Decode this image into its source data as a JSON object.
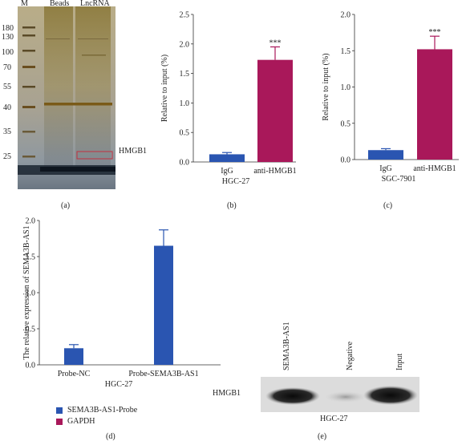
{
  "colors": {
    "blue": "#2a55b1",
    "magenta": "#a9185a",
    "axis": "#333333",
    "gel_dark": "#1a2430",
    "gel_gold": "#8a7436"
  },
  "panel_a": {
    "caption": "(a)",
    "lane_labels": [
      "M",
      "Beads",
      "LncRNA"
    ],
    "marker_labels": [
      "180",
      "130",
      "100",
      "70",
      "55",
      "40",
      "35",
      "25"
    ],
    "band_label": "HMGB1"
  },
  "panel_b": {
    "caption": "(b)",
    "cell_line": "HGC-27",
    "chart_data": {
      "type": "bar",
      "categories": [
        "IgG",
        "anti-HMGB1"
      ],
      "values": [
        0.13,
        1.73
      ],
      "errors": [
        0.03,
        0.22
      ],
      "ylabel": "Relative to input (%)",
      "ylim": [
        0,
        2.5
      ],
      "yticks": [
        "0.0",
        "0.5",
        "1.0",
        "1.5",
        "2.0",
        "2.5"
      ],
      "annotation": "***"
    }
  },
  "panel_c": {
    "caption": "(c)",
    "cell_line": "SGC-7901",
    "chart_data": {
      "type": "bar",
      "categories": [
        "IgG",
        "anti-HMGB1"
      ],
      "values": [
        0.13,
        1.52
      ],
      "errors": [
        0.02,
        0.18
      ],
      "ylabel": "Relative to input (%)",
      "ylim": [
        0,
        2.0
      ],
      "yticks": [
        "0.0",
        "0.5",
        "1.0",
        "1.5",
        "2.0"
      ],
      "annotation": "***"
    }
  },
  "panel_d": {
    "caption": "(d)",
    "cell_line": "HGC-27",
    "legend": [
      "SEMA3B-AS1-Probe",
      "GAPDH"
    ],
    "chart_data": {
      "type": "bar",
      "categories": [
        "Probe-NC",
        "Probe-SEMA3B-AS1"
      ],
      "series": [
        {
          "name": "SEMA3B-AS1-Probe",
          "values": [
            0.23,
            1.65
          ],
          "errors": [
            0.05,
            0.22
          ]
        },
        {
          "name": "GAPDH",
          "values": [
            0,
            0
          ],
          "errors": [
            0,
            0
          ]
        }
      ],
      "ylabel": "The relative expression of SEMA3B-AS1",
      "ylim": [
        0,
        2.0
      ],
      "yticks": [
        "0.0",
        "0.5",
        "1.0",
        "1.5",
        "2.0"
      ],
      "legend_position": "bottom-left"
    }
  },
  "panel_e": {
    "caption": "(e)",
    "lane_labels": [
      "SEMA3B-AS1",
      "Negative",
      "Input"
    ],
    "row_label": "HMGB1",
    "cell_line": "HGC-27"
  }
}
